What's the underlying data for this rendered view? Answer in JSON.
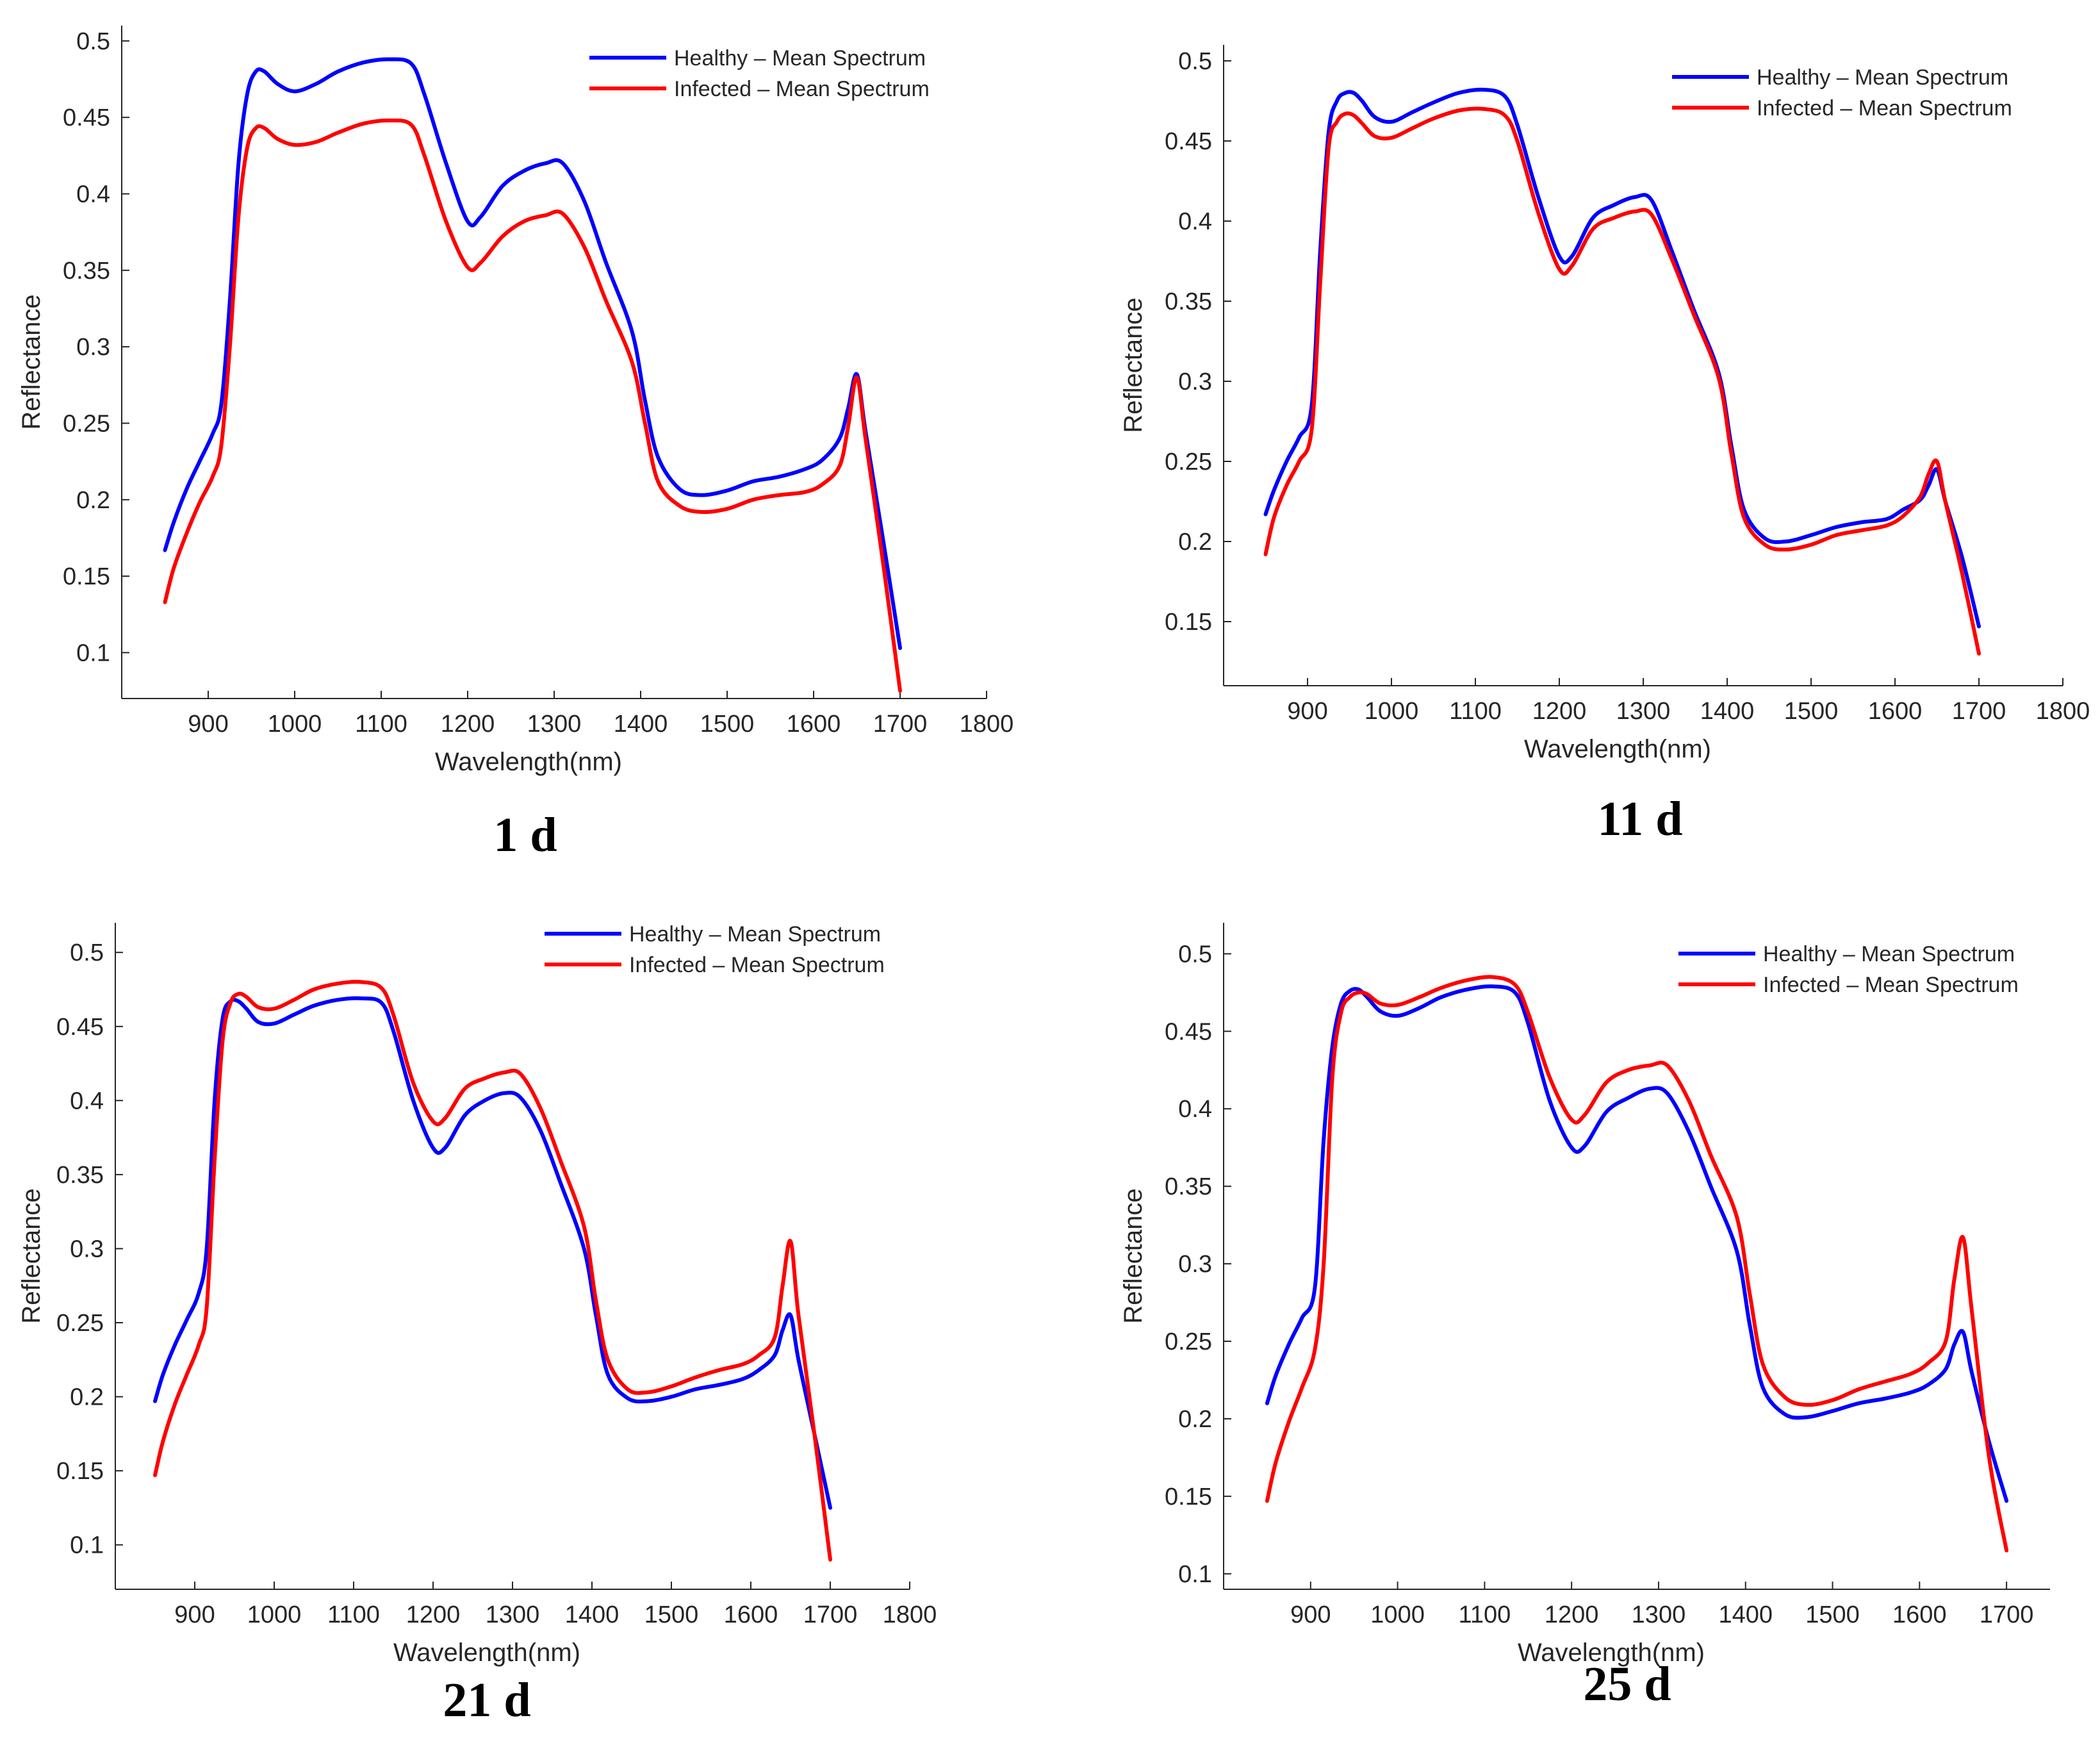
{
  "figure": {
    "captions": [
      "1 d",
      "11 d",
      "21 d",
      "25 d"
    ]
  },
  "colors": {
    "healthy": "#0000ff",
    "infected": "#ff0000",
    "axis": "#262626"
  },
  "chart_data": [
    {
      "type": "line",
      "caption": "1 d",
      "xlabel": "Wavelength(nm)",
      "ylabel": "Reflectance",
      "xlim": [
        800,
        1800
      ],
      "ylim": [
        0.07,
        0.51
      ],
      "xticks": [
        900,
        1000,
        1100,
        1200,
        1300,
        1400,
        1500,
        1600,
        1700,
        1800
      ],
      "yticks": [
        0.1,
        0.15,
        0.2,
        0.25,
        0.3,
        0.35,
        0.4,
        0.45,
        0.5
      ],
      "ytick_labels": [
        "0.1",
        "0.15",
        "0.2",
        "0.25",
        "0.3",
        "0.35",
        "0.4",
        "0.45",
        "0.5"
      ],
      "x": [
        850,
        860,
        875,
        890,
        905,
        915,
        925,
        935,
        945,
        955,
        965,
        980,
        1000,
        1025,
        1050,
        1080,
        1110,
        1135,
        1150,
        1175,
        1200,
        1215,
        1240,
        1265,
        1290,
        1310,
        1335,
        1360,
        1390,
        1405,
        1420,
        1445,
        1470,
        1500,
        1530,
        1560,
        1590,
        1610,
        1630,
        1640,
        1650,
        1660,
        1680,
        1700
      ],
      "series": [
        {
          "name": "Healthy – Mean Spectrum",
          "color": "#0000ff",
          "values": [
            0.167,
            0.185,
            0.207,
            0.225,
            0.243,
            0.262,
            0.33,
            0.42,
            0.465,
            0.48,
            0.48,
            0.472,
            0.467,
            0.472,
            0.48,
            0.486,
            0.488,
            0.485,
            0.465,
            0.42,
            0.382,
            0.385,
            0.405,
            0.415,
            0.42,
            0.42,
            0.395,
            0.355,
            0.31,
            0.265,
            0.228,
            0.207,
            0.203,
            0.206,
            0.212,
            0.215,
            0.22,
            0.226,
            0.24,
            0.26,
            0.282,
            0.245,
            0.175,
            0.103
          ]
        },
        {
          "name": "Infected – Mean Spectrum",
          "color": "#ff0000",
          "values": [
            0.133,
            0.155,
            0.178,
            0.198,
            0.215,
            0.235,
            0.3,
            0.385,
            0.43,
            0.443,
            0.443,
            0.436,
            0.432,
            0.434,
            0.44,
            0.446,
            0.448,
            0.445,
            0.425,
            0.382,
            0.352,
            0.355,
            0.372,
            0.382,
            0.386,
            0.387,
            0.365,
            0.33,
            0.29,
            0.25,
            0.212,
            0.196,
            0.192,
            0.194,
            0.2,
            0.203,
            0.205,
            0.21,
            0.222,
            0.248,
            0.28,
            0.24,
            0.16,
            0.075
          ]
        }
      ],
      "legend": [
        "Healthy – Mean Spectrum",
        "Infected – Mean Spectrum"
      ]
    },
    {
      "type": "line",
      "caption": "11 d",
      "xlabel": "Wavelength(nm)",
      "ylabel": "Reflectance",
      "xlim": [
        800,
        1800
      ],
      "ylim": [
        0.11,
        0.51
      ],
      "xticks": [
        900,
        1000,
        1100,
        1200,
        1300,
        1400,
        1500,
        1600,
        1700,
        1800
      ],
      "yticks": [
        0.15,
        0.2,
        0.25,
        0.3,
        0.35,
        0.4,
        0.45,
        0.5
      ],
      "ytick_labels": [
        "0.15",
        "0.2",
        "0.25",
        "0.3",
        "0.35",
        "0.4",
        "0.45",
        "0.5"
      ],
      "x": [
        850,
        860,
        875,
        890,
        905,
        915,
        925,
        935,
        945,
        955,
        965,
        980,
        1000,
        1025,
        1050,
        1080,
        1110,
        1135,
        1150,
        1175,
        1200,
        1215,
        1240,
        1265,
        1290,
        1310,
        1335,
        1360,
        1390,
        1405,
        1420,
        1445,
        1470,
        1500,
        1530,
        1560,
        1590,
        1610,
        1630,
        1640,
        1650,
        1660,
        1680,
        1700
      ],
      "series": [
        {
          "name": "Healthy – Mean Spectrum",
          "color": "#0000ff",
          "values": [
            0.217,
            0.232,
            0.25,
            0.265,
            0.285,
            0.38,
            0.455,
            0.475,
            0.48,
            0.48,
            0.475,
            0.465,
            0.462,
            0.468,
            0.474,
            0.48,
            0.482,
            0.478,
            0.46,
            0.415,
            0.378,
            0.378,
            0.402,
            0.41,
            0.415,
            0.413,
            0.38,
            0.345,
            0.305,
            0.26,
            0.22,
            0.202,
            0.2,
            0.204,
            0.209,
            0.212,
            0.214,
            0.22,
            0.226,
            0.235,
            0.245,
            0.225,
            0.19,
            0.147
          ]
        },
        {
          "name": "Infected – Mean Spectrum",
          "color": "#ff0000",
          "values": [
            0.192,
            0.215,
            0.235,
            0.25,
            0.27,
            0.36,
            0.445,
            0.462,
            0.467,
            0.466,
            0.461,
            0.453,
            0.452,
            0.458,
            0.464,
            0.469,
            0.47,
            0.466,
            0.45,
            0.405,
            0.37,
            0.372,
            0.395,
            0.402,
            0.406,
            0.404,
            0.375,
            0.342,
            0.302,
            0.255,
            0.215,
            0.198,
            0.195,
            0.198,
            0.204,
            0.207,
            0.21,
            0.216,
            0.228,
            0.242,
            0.25,
            0.225,
            0.18,
            0.13
          ]
        }
      ],
      "legend": [
        "Healthy – Mean Spectrum",
        "Infected – Mean Spectrum"
      ]
    },
    {
      "type": "line",
      "caption": "21 d",
      "xlabel": "Wavelength(nm)",
      "ylabel": "Reflectance",
      "xlim": [
        800,
        1800
      ],
      "ylim": [
        0.07,
        0.52
      ],
      "xticks": [
        900,
        1000,
        1100,
        1200,
        1300,
        1400,
        1500,
        1600,
        1700,
        1800
      ],
      "yticks": [
        0.1,
        0.15,
        0.2,
        0.25,
        0.3,
        0.35,
        0.4,
        0.45,
        0.5
      ],
      "ytick_labels": [
        "0.1",
        "0.15",
        "0.2",
        "0.25",
        "0.3",
        "0.35",
        "0.4",
        "0.45",
        "0.5"
      ],
      "x": [
        850,
        860,
        875,
        890,
        905,
        915,
        925,
        935,
        945,
        955,
        965,
        980,
        1000,
        1025,
        1050,
        1080,
        1110,
        1135,
        1150,
        1175,
        1200,
        1215,
        1240,
        1265,
        1290,
        1310,
        1335,
        1360,
        1390,
        1405,
        1420,
        1445,
        1470,
        1500,
        1530,
        1560,
        1590,
        1610,
        1630,
        1640,
        1650,
        1660,
        1680,
        1700
      ],
      "series": [
        {
          "name": "Healthy – Mean Spectrum",
          "color": "#0000ff",
          "values": [
            0.197,
            0.215,
            0.235,
            0.252,
            0.27,
            0.3,
            0.4,
            0.455,
            0.467,
            0.467,
            0.462,
            0.453,
            0.452,
            0.458,
            0.464,
            0.468,
            0.469,
            0.466,
            0.447,
            0.4,
            0.368,
            0.368,
            0.39,
            0.4,
            0.405,
            0.402,
            0.38,
            0.345,
            0.3,
            0.255,
            0.215,
            0.199,
            0.197,
            0.2,
            0.205,
            0.208,
            0.212,
            0.218,
            0.228,
            0.245,
            0.255,
            0.225,
            0.175,
            0.125
          ]
        },
        {
          "name": "Infected – Mean Spectrum",
          "color": "#ff0000",
          "values": [
            0.147,
            0.17,
            0.195,
            0.215,
            0.235,
            0.26,
            0.36,
            0.44,
            0.466,
            0.472,
            0.47,
            0.463,
            0.462,
            0.468,
            0.475,
            0.479,
            0.48,
            0.476,
            0.458,
            0.412,
            0.386,
            0.388,
            0.408,
            0.415,
            0.419,
            0.418,
            0.395,
            0.36,
            0.315,
            0.265,
            0.225,
            0.205,
            0.203,
            0.207,
            0.213,
            0.218,
            0.222,
            0.228,
            0.24,
            0.275,
            0.305,
            0.255,
            0.175,
            0.09
          ]
        }
      ],
      "legend": [
        "Healthy – Mean Spectrum",
        "Infected – Mean Spectrum"
      ]
    },
    {
      "type": "line",
      "caption": "25 d",
      "xlabel": "Wavelength(nm)",
      "ylabel": "Reflectance",
      "xlim": [
        800,
        1750
      ],
      "ylim": [
        0.09,
        0.52
      ],
      "xticks": [
        900,
        1000,
        1100,
        1200,
        1300,
        1400,
        1500,
        1600,
        1700
      ],
      "yticks": [
        0.1,
        0.15,
        0.2,
        0.25,
        0.3,
        0.35,
        0.4,
        0.45,
        0.5
      ],
      "ytick_labels": [
        "0.1",
        "0.15",
        "0.2",
        "0.25",
        "0.3",
        "0.35",
        "0.4",
        "0.45",
        "0.5"
      ],
      "x": [
        850,
        860,
        875,
        890,
        905,
        915,
        925,
        935,
        945,
        955,
        965,
        980,
        1000,
        1025,
        1050,
        1080,
        1110,
        1135,
        1150,
        1175,
        1200,
        1215,
        1240,
        1265,
        1290,
        1310,
        1335,
        1360,
        1390,
        1405,
        1420,
        1445,
        1470,
        1500,
        1530,
        1560,
        1590,
        1610,
        1630,
        1640,
        1650,
        1660,
        1680,
        1700
      ],
      "series": [
        {
          "name": "Healthy – Mean Spectrum",
          "color": "#0000ff",
          "values": [
            0.21,
            0.228,
            0.248,
            0.265,
            0.285,
            0.38,
            0.44,
            0.468,
            0.476,
            0.477,
            0.472,
            0.463,
            0.46,
            0.465,
            0.472,
            0.477,
            0.479,
            0.475,
            0.455,
            0.405,
            0.375,
            0.376,
            0.398,
            0.407,
            0.413,
            0.41,
            0.385,
            0.35,
            0.308,
            0.26,
            0.22,
            0.203,
            0.201,
            0.205,
            0.21,
            0.213,
            0.217,
            0.222,
            0.232,
            0.248,
            0.256,
            0.23,
            0.185,
            0.147
          ]
        },
        {
          "name": "Infected – Mean Spectrum",
          "color": "#ff0000",
          "values": [
            0.147,
            0.172,
            0.198,
            0.22,
            0.245,
            0.3,
            0.42,
            0.462,
            0.472,
            0.475,
            0.474,
            0.468,
            0.467,
            0.472,
            0.478,
            0.483,
            0.485,
            0.48,
            0.462,
            0.42,
            0.393,
            0.396,
            0.417,
            0.425,
            0.428,
            0.428,
            0.405,
            0.37,
            0.33,
            0.28,
            0.235,
            0.214,
            0.209,
            0.212,
            0.219,
            0.224,
            0.229,
            0.236,
            0.25,
            0.29,
            0.317,
            0.27,
            0.175,
            0.115
          ]
        }
      ],
      "legend": [
        "Healthy – Mean Spectrum",
        "Infected – Mean Spectrum"
      ]
    }
  ]
}
